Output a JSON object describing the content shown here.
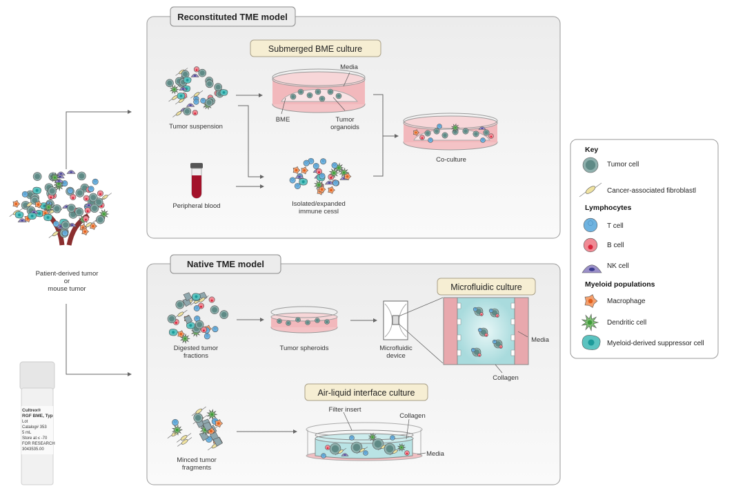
{
  "source": {
    "tumor_label": [
      "Patient-derived tumor",
      "or",
      "mouse tumor"
    ],
    "vial_label": [
      "Cultrex®",
      "RGF BME, Typ",
      "Lot",
      "Catalog# 353",
      "5 mL",
      "Store at ≤ -70",
      "FOR RESEARCH",
      "3043535.00"
    ]
  },
  "reconstituted": {
    "title": "Reconstituted TME model",
    "subtitle": "Submerged BME culture",
    "tumor_suspension": "Tumor suspension",
    "peripheral_blood": "Peripheral blood",
    "media": "Media",
    "bme": "BME",
    "tumor_organoids": [
      "Tumor",
      "organoids"
    ],
    "immune_cells": [
      "Isolated/expanded",
      "immune cessl"
    ],
    "co_culture": "Co-culture"
  },
  "native": {
    "title": "Native TME model",
    "digested": [
      "Digested tumor",
      "fractions"
    ],
    "spheroids": "Tumor spheroids",
    "device": [
      "Microfluidic",
      "device"
    ],
    "microfluidic_title": "Microfluidic culture",
    "media": "Media",
    "collagen": "Collagen",
    "ali_title": "Air-liquid interface culture",
    "minced": [
      "Minced tumor",
      "fragments"
    ],
    "filter_insert": "Filter insert",
    "ali_collagen": "Collagen",
    "ali_media": "Media"
  },
  "key": {
    "title": "Key",
    "items": [
      {
        "label": "Tumor cell",
        "icon": "tumor-cell"
      },
      {
        "label": "Cancer-associated fibroblastl",
        "icon": "fibroblast"
      }
    ],
    "lymphocytes_title": "Lymphocytes",
    "lymphocytes": [
      {
        "label": "T cell",
        "icon": "t-cell"
      },
      {
        "label": "B cell",
        "icon": "b-cell"
      },
      {
        "label": "NK cell",
        "icon": "nk-cell"
      }
    ],
    "myeloid_title": "Myeloid populations",
    "myeloid": [
      {
        "label": "Macrophage",
        "icon": "macrophage"
      },
      {
        "label": "Dendritic cell",
        "icon": "dendritic-cell"
      },
      {
        "label": "Myeloid-derived suppressor cell",
        "icon": "mdsc"
      }
    ]
  },
  "colors": {
    "tumor": "#5f8a86",
    "t_cell": "#6fb3e0",
    "b_cell": "#f08a94",
    "nk": "#9a8fc8",
    "macrophage": "#f4a06e",
    "dendritic": "#7cbf72",
    "mdsc": "#5cc3c0",
    "fibroblast": "#efe2a0",
    "media": "#f2c4c6",
    "collagen": "#bfe6e8",
    "label_fill": "#f6eed3"
  }
}
